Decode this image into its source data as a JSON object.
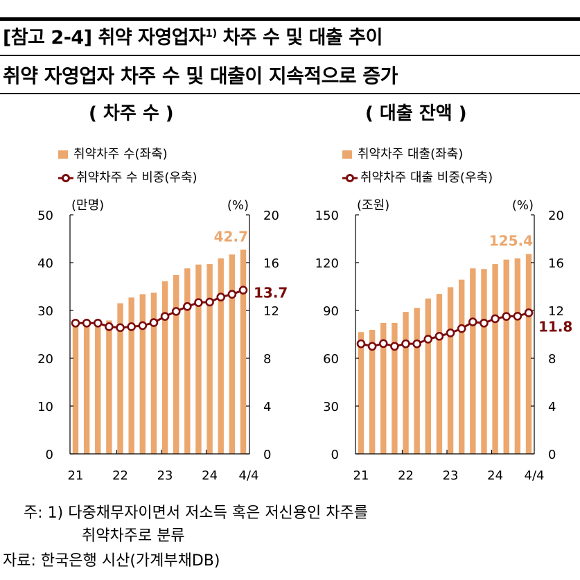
{
  "header": {
    "title": "[참고 2-4] 취약 자영업자",
    "title_sup": "1)",
    "title_rest": " 차주 수 및 대출 추이",
    "subtitle": "취약 자영업자 차주 수 및 대출이 지속적으로 증가"
  },
  "colors": {
    "bar": "#EBA76E",
    "line": "#7B0C0C",
    "bar_label": "#EBA76E",
    "line_label": "#7B0C0C"
  },
  "chart_data": [
    {
      "type": "bar+line",
      "title": "( 차주 수 )",
      "legend": [
        "취약차주 수(좌축)",
        "취약차주 수 비중(우축)"
      ],
      "left_unit": "(만명)",
      "right_unit": "(%)",
      "left_ylim": [
        0,
        50
      ],
      "left_ticks": [
        "0",
        "10",
        "20",
        "30",
        "40",
        "50"
      ],
      "right_ylim": [
        0,
        20
      ],
      "right_ticks": [
        "0",
        "4",
        "8",
        "12",
        "16",
        "20"
      ],
      "x_tick_labels": [
        "21",
        "22",
        "23",
        "24",
        "4/4"
      ],
      "x_tick_positions": [
        0,
        4,
        8,
        12,
        15
      ],
      "bars": [
        27.6,
        27.6,
        27.6,
        27.9,
        31.5,
        32.7,
        33.4,
        33.7,
        36.1,
        37.4,
        38.8,
        39.6,
        39.7,
        40.9,
        41.7,
        42.7
      ],
      "line": [
        10.94,
        10.94,
        10.94,
        10.64,
        10.56,
        10.64,
        10.73,
        10.98,
        11.5,
        11.92,
        12.33,
        12.66,
        12.7,
        13.12,
        13.35,
        13.7
      ],
      "bar_last_label": "42.7",
      "line_last_label": "13.7"
    },
    {
      "type": "bar+line",
      "title": "( 대출 잔액 )",
      "legend": [
        "취약차주 대출(좌축)",
        "취약차주 대출 비중(우축)"
      ],
      "left_unit": "(조원)",
      "right_unit": "(%)",
      "left_ylim": [
        0,
        150
      ],
      "left_ticks": [
        "0",
        "30",
        "60",
        "90",
        "120",
        "150"
      ],
      "right_ylim": [
        0,
        20
      ],
      "right_ticks": [
        "0",
        "4",
        "8",
        "12",
        "16",
        "20"
      ],
      "x_tick_labels": [
        "21",
        "22",
        "23",
        "24",
        "4/4"
      ],
      "x_tick_positions": [
        0,
        4,
        8,
        12,
        15
      ],
      "bars": [
        76.4,
        77.8,
        82.2,
        82.2,
        89.1,
        91.6,
        97.5,
        100.4,
        104.6,
        109.3,
        116.4,
        116.0,
        119.1,
        121.9,
        122.7,
        125.4
      ],
      "line": [
        9.21,
        9.0,
        9.23,
        9.0,
        9.21,
        9.21,
        9.6,
        9.84,
        10.12,
        10.48,
        11.04,
        10.94,
        11.31,
        11.5,
        11.52,
        11.8
      ],
      "bar_last_label": "125.4",
      "line_last_label": "11.8"
    }
  ],
  "notes": {
    "note_line1": "주: 1) 다중채무자이면서 저소득 혹은 저신용인 차주를",
    "note_line2": "취약차주로 분류",
    "source": "자료: 한국은행 시산(가계부채DB)"
  }
}
